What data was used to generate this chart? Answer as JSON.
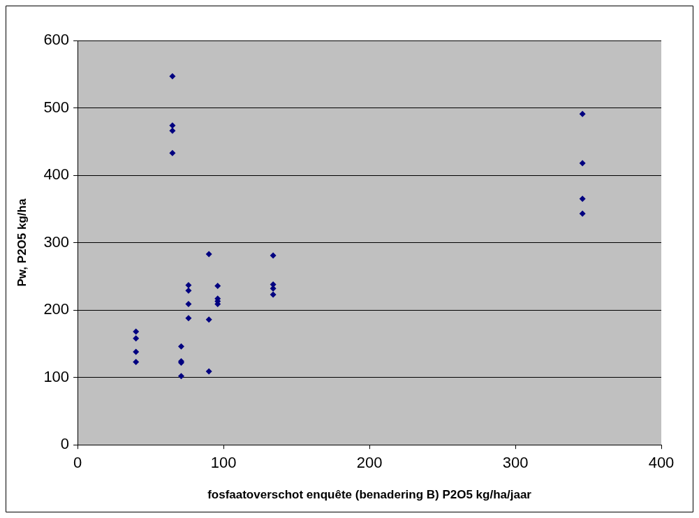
{
  "chart_data": {
    "type": "scatter",
    "xlabel": "fosfaatoverschot enquête (benadering B) P2O5 kg/ha/jaar",
    "ylabel": "Pw, P2O5 kg/ha",
    "x": [
      65,
      65,
      65,
      65,
      40,
      40,
      40,
      40,
      71,
      71,
      71,
      71,
      76,
      76,
      76,
      76,
      90,
      90,
      90,
      96,
      96,
      96,
      96,
      134,
      134,
      134,
      134,
      346,
      346,
      346,
      346
    ],
    "series": [
      {
        "color": "#000080",
        "values": [
          547,
          474,
          466,
          433,
          168,
          158,
          138,
          123,
          146,
          122,
          124,
          102,
          237,
          229,
          209,
          188,
          283,
          186,
          109,
          236,
          217,
          213,
          209,
          281,
          238,
          232,
          223,
          491,
          418,
          365,
          343
        ]
      }
    ],
    "xlim": [
      0,
      400
    ],
    "xticks": [
      0,
      100,
      200,
      300,
      400
    ],
    "ylim": [
      0,
      600
    ],
    "yticks": [
      0,
      100,
      200,
      300,
      400,
      500,
      600
    ],
    "grid": "y",
    "legend": false,
    "marker": "diamond"
  }
}
